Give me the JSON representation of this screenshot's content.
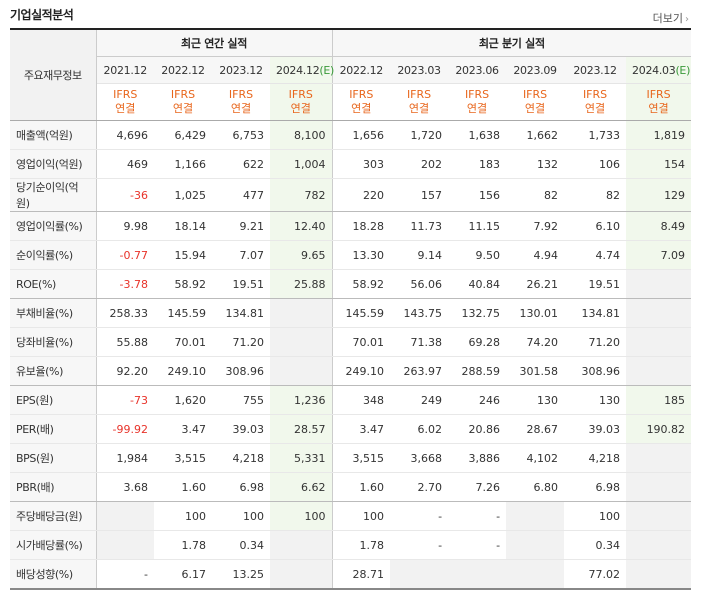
{
  "title": "기업실적분석",
  "more_label": "더보기",
  "header": {
    "item_label": "주요재무정보",
    "annual_group": "최근 연간 실적",
    "quarter_group": "최근 분기 실적",
    "periods": [
      {
        "date": "2021.12",
        "est": ""
      },
      {
        "date": "2022.12",
        "est": ""
      },
      {
        "date": "2023.12",
        "est": ""
      },
      {
        "date": "2024.12",
        "est": "(E)"
      },
      {
        "date": "2022.12",
        "est": ""
      },
      {
        "date": "2023.03",
        "est": ""
      },
      {
        "date": "2023.06",
        "est": ""
      },
      {
        "date": "2023.09",
        "est": ""
      },
      {
        "date": "2023.12",
        "est": ""
      },
      {
        "date": "2024.03",
        "est": "(E)"
      }
    ],
    "ifrs_line1": "IFRS",
    "ifrs_line2": "연결"
  },
  "rows": [
    {
      "label": "매출액(억원)",
      "values": [
        "4,696",
        "6,429",
        "6,753",
        "8,100",
        "1,656",
        "1,720",
        "1,638",
        "1,662",
        "1,733",
        "1,819"
      ]
    },
    {
      "label": "영업이익(억원)",
      "values": [
        "469",
        "1,166",
        "622",
        "1,004",
        "303",
        "202",
        "183",
        "132",
        "106",
        "154"
      ]
    },
    {
      "label": "당기순이익(억원)",
      "values": [
        "-36",
        "1,025",
        "477",
        "782",
        "220",
        "157",
        "156",
        "82",
        "82",
        "129"
      ]
    },
    {
      "label": "영업이익률(%)",
      "values": [
        "9.98",
        "18.14",
        "9.21",
        "12.40",
        "18.28",
        "11.73",
        "11.15",
        "7.92",
        "6.10",
        "8.49"
      ]
    },
    {
      "label": "순이익률(%)",
      "values": [
        "-0.77",
        "15.94",
        "7.07",
        "9.65",
        "13.30",
        "9.14",
        "9.50",
        "4.94",
        "4.74",
        "7.09"
      ]
    },
    {
      "label": "ROE(%)",
      "values": [
        "-3.78",
        "58.92",
        "19.51",
        "25.88",
        "58.92",
        "56.06",
        "40.84",
        "26.21",
        "19.51",
        ""
      ]
    },
    {
      "label": "부채비율(%)",
      "values": [
        "258.33",
        "145.59",
        "134.81",
        "",
        "145.59",
        "143.75",
        "132.75",
        "130.01",
        "134.81",
        ""
      ]
    },
    {
      "label": "당좌비율(%)",
      "values": [
        "55.88",
        "70.01",
        "71.20",
        "",
        "70.01",
        "71.38",
        "69.28",
        "74.20",
        "71.20",
        ""
      ]
    },
    {
      "label": "유보율(%)",
      "values": [
        "92.20",
        "249.10",
        "308.96",
        "",
        "249.10",
        "263.97",
        "288.59",
        "301.58",
        "308.96",
        ""
      ]
    },
    {
      "label": "EPS(원)",
      "values": [
        "-73",
        "1,620",
        "755",
        "1,236",
        "348",
        "249",
        "246",
        "130",
        "130",
        "185"
      ]
    },
    {
      "label": "PER(배)",
      "values": [
        "-99.92",
        "3.47",
        "39.03",
        "28.57",
        "3.47",
        "6.02",
        "20.86",
        "28.67",
        "39.03",
        "190.82"
      ]
    },
    {
      "label": "BPS(원)",
      "values": [
        "1,984",
        "3,515",
        "4,218",
        "5,331",
        "3,515",
        "3,668",
        "3,886",
        "4,102",
        "4,218",
        ""
      ]
    },
    {
      "label": "PBR(배)",
      "values": [
        "3.68",
        "1.60",
        "6.98",
        "6.62",
        "1.60",
        "2.70",
        "7.26",
        "6.80",
        "6.98",
        ""
      ]
    },
    {
      "label": "주당배당금(원)",
      "values": [
        "",
        "100",
        "100",
        "100",
        "100",
        "-",
        "-",
        "",
        "100",
        ""
      ]
    },
    {
      "label": "시가배당률(%)",
      "values": [
        "",
        "1.78",
        "0.34",
        "",
        "1.78",
        "-",
        "-",
        "",
        "0.34",
        ""
      ]
    },
    {
      "label": "배당성향(%)",
      "values": [
        "-",
        "6.17",
        "13.25",
        "",
        "28.71",
        "",
        "",
        "",
        "77.02",
        ""
      ]
    }
  ],
  "colors": {
    "negative": "#e8332a",
    "ifrs": "#e8661c",
    "estimate_bg": "#f1f8ec",
    "estimate_mark": "#3a9a3a"
  }
}
